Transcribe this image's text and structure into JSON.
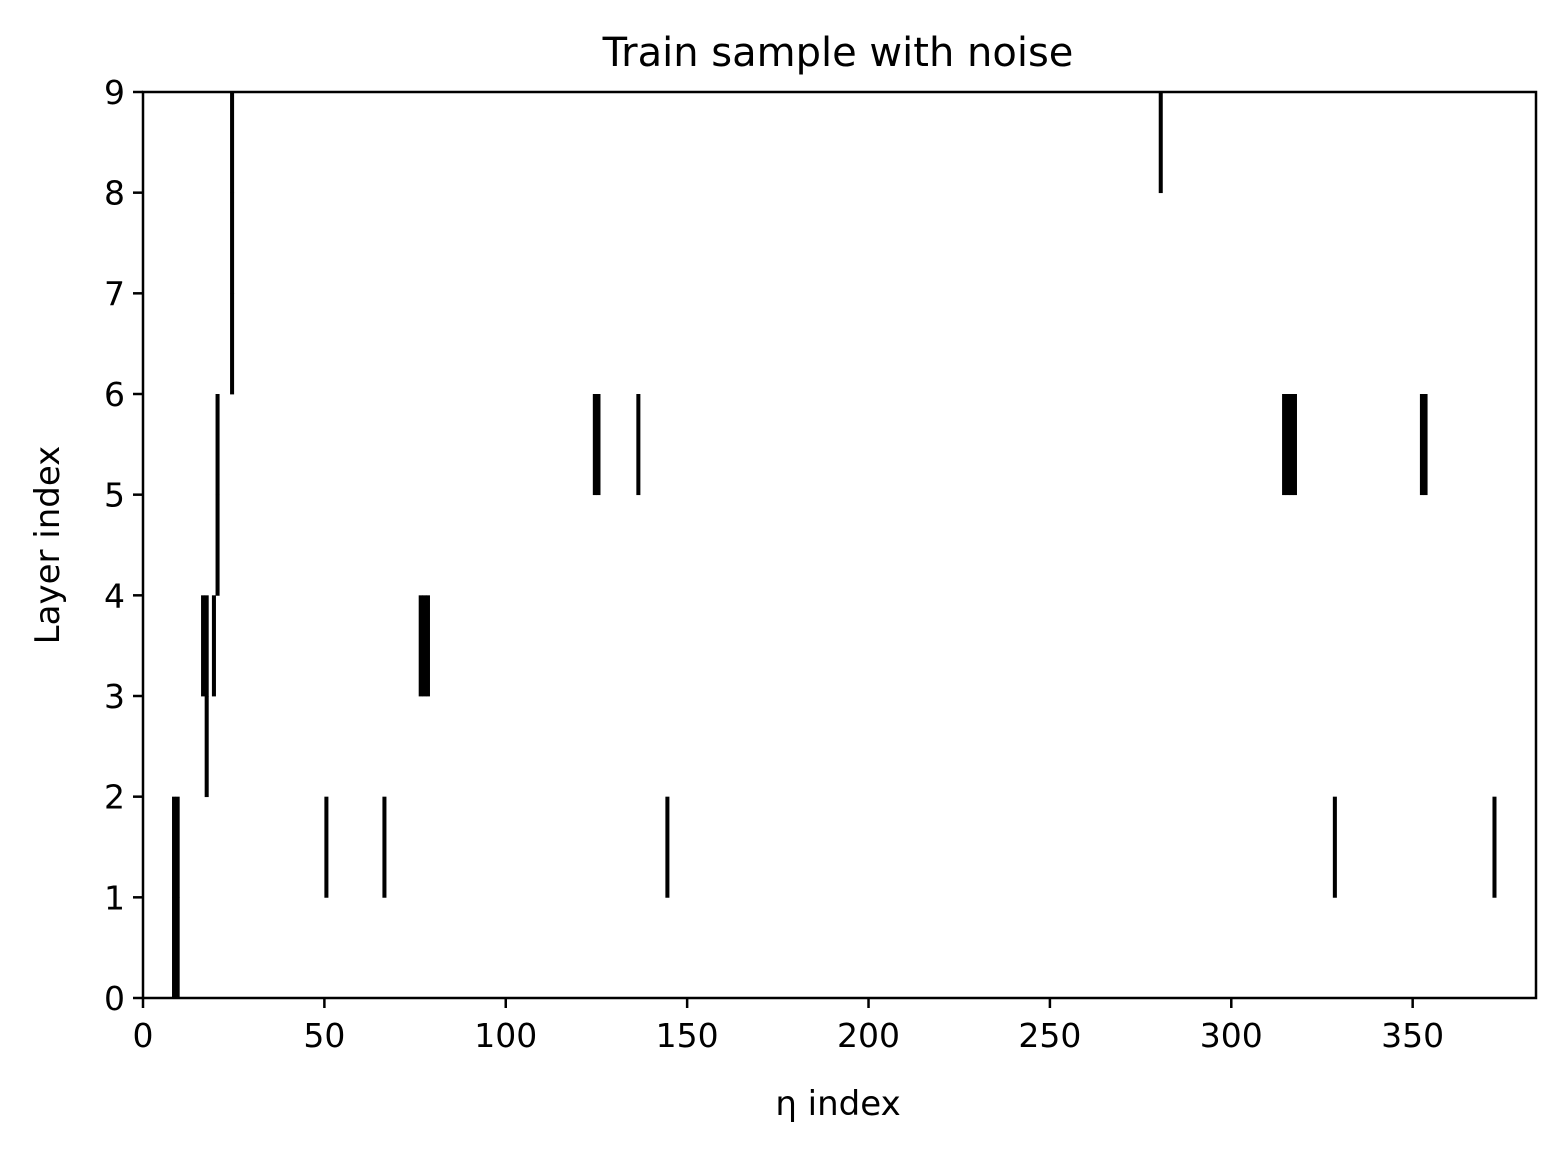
{
  "chart_data": {
    "type": "heatmap",
    "title": "Train sample with noise",
    "xlabel": "η index",
    "ylabel": "Layer index",
    "xlim": [
      0,
      384
    ],
    "ylim": [
      0,
      9
    ],
    "xticks": [
      "0",
      "50",
      "100",
      "150",
      "200",
      "250",
      "300",
      "350"
    ],
    "yticks": [
      "0",
      "1",
      "2",
      "3",
      "4",
      "5",
      "6",
      "7",
      "8",
      "9"
    ],
    "grid": false,
    "legend": "none",
    "cell_color": "#000000",
    "background_color": "#ffffff",
    "active_cells": [
      {
        "layer": 0,
        "eta": [
          8,
          9
        ]
      },
      {
        "layer": 1,
        "eta": [
          8,
          9,
          50,
          66,
          144,
          328,
          372
        ]
      },
      {
        "layer": 2,
        "eta": [
          17
        ]
      },
      {
        "layer": 3,
        "eta": [
          16,
          17,
          19,
          76,
          77,
          78
        ]
      },
      {
        "layer": 4,
        "eta": [
          20
        ]
      },
      {
        "layer": 5,
        "eta": [
          20,
          124,
          125,
          136,
          314,
          315,
          316,
          317,
          352,
          353
        ]
      },
      {
        "layer": 6,
        "eta": [
          24
        ]
      },
      {
        "layer": 7,
        "eta": [
          24
        ]
      },
      {
        "layer": 8,
        "eta": [
          24,
          280
        ]
      }
    ]
  }
}
